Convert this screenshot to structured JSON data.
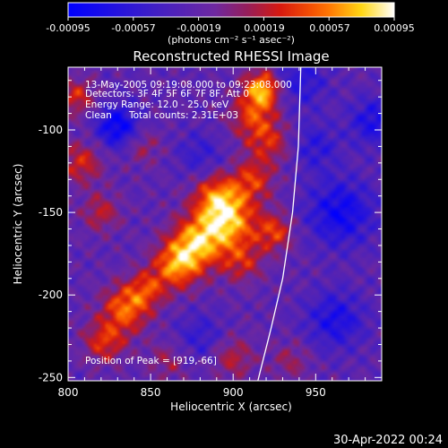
{
  "colorbar": {
    "ticks": [
      "-0.00095",
      "-0.00057",
      "-0.00019",
      "0.00019",
      "0.00057",
      "0.00095"
    ],
    "units": "(photons cm⁻² s⁻¹ asec⁻²)"
  },
  "annotations": {
    "time_range": "13-May-2005 09:19:08.000 to 09:23:08.000",
    "detectors": "Detectors: 3F 4F 5F 6F 7F 8F, Att 0",
    "energy_range": "Energy Range: 12.0 - 25.0 keV",
    "clean_label": "Clean",
    "total_counts": "Total counts: 2.31E+03",
    "peak_position": "Position of Peak = [919,-66]"
  },
  "footer": {
    "date": "30-Apr-2022 00:24"
  },
  "chart_data": {
    "type": "heatmap",
    "title": "Reconstructed RHESSI Image",
    "xlabel": "Heliocentric X (arcsec)",
    "ylabel": "Heliocentric Y (arcsec)",
    "xlim": [
      800,
      990
    ],
    "ylim": [
      -252,
      -62
    ],
    "x_ticks": [
      800,
      850,
      900,
      950
    ],
    "y_ticks": [
      -100,
      -150,
      -200,
      -250
    ],
    "colorbar_range": [
      -0.00095,
      0.00095
    ],
    "colormap": "blue-purple-red-yellow-white",
    "peak": {
      "x": 919,
      "y": -66
    },
    "limb_curve": {
      "x": [
        915,
        923,
        930,
        936,
        939.5,
        941
      ],
      "y": [
        -252,
        -220,
        -190,
        -150,
        -110,
        -62
      ]
    },
    "blobs": [
      {
        "x": 918,
        "y": -75,
        "amp": 0.00092,
        "s": 8
      },
      {
        "x": 912,
        "y": -92,
        "amp": 0.00055,
        "s": 10
      },
      {
        "x": 922,
        "y": -108,
        "amp": 0.00045,
        "s": 9
      },
      {
        "x": 897,
        "y": -155,
        "amp": 0.00088,
        "s": 12
      },
      {
        "x": 878,
        "y": -168,
        "amp": 0.00082,
        "s": 11
      },
      {
        "x": 866,
        "y": -182,
        "amp": 0.00078,
        "s": 10
      },
      {
        "x": 890,
        "y": -140,
        "amp": 0.00062,
        "s": 10
      },
      {
        "x": 912,
        "y": -130,
        "amp": 0.00052,
        "s": 9
      },
      {
        "x": 925,
        "y": -162,
        "amp": 0.00058,
        "s": 8
      },
      {
        "x": 905,
        "y": -180,
        "amp": 0.00045,
        "s": 9
      },
      {
        "x": 835,
        "y": -208,
        "amp": 0.00072,
        "s": 10
      },
      {
        "x": 848,
        "y": -196,
        "amp": 0.0005,
        "s": 8
      },
      {
        "x": 822,
        "y": -228,
        "amp": 0.00055,
        "s": 9
      },
      {
        "x": 805,
        "y": -80,
        "amp": 0.0005,
        "s": 8
      },
      {
        "x": 808,
        "y": -120,
        "amp": 0.0005,
        "s": 9
      },
      {
        "x": 820,
        "y": -150,
        "amp": 0.00042,
        "s": 8
      },
      {
        "x": 845,
        "y": -110,
        "amp": 0.0003,
        "s": 8
      },
      {
        "x": 900,
        "y": -238,
        "amp": 0.0004,
        "s": 9
      },
      {
        "x": 935,
        "y": -240,
        "amp": 0.0003,
        "s": 8
      },
      {
        "x": 860,
        "y": -240,
        "amp": 0.0003,
        "s": 8
      },
      {
        "x": 940,
        "y": -70,
        "amp": -0.0004,
        "s": 12
      },
      {
        "x": 965,
        "y": -150,
        "amp": -0.0006,
        "s": 14
      },
      {
        "x": 962,
        "y": -215,
        "amp": -0.0005,
        "s": 12
      },
      {
        "x": 830,
        "y": -98,
        "amp": -0.0007,
        "s": 9
      },
      {
        "x": 985,
        "y": -95,
        "amp": -0.0005,
        "s": 10
      },
      {
        "x": 880,
        "y": -115,
        "amp": -0.0003,
        "s": 10
      },
      {
        "x": 950,
        "y": -110,
        "amp": -0.00035,
        "s": 10
      },
      {
        "x": 880,
        "y": -225,
        "amp": -0.0003,
        "s": 10
      }
    ]
  }
}
